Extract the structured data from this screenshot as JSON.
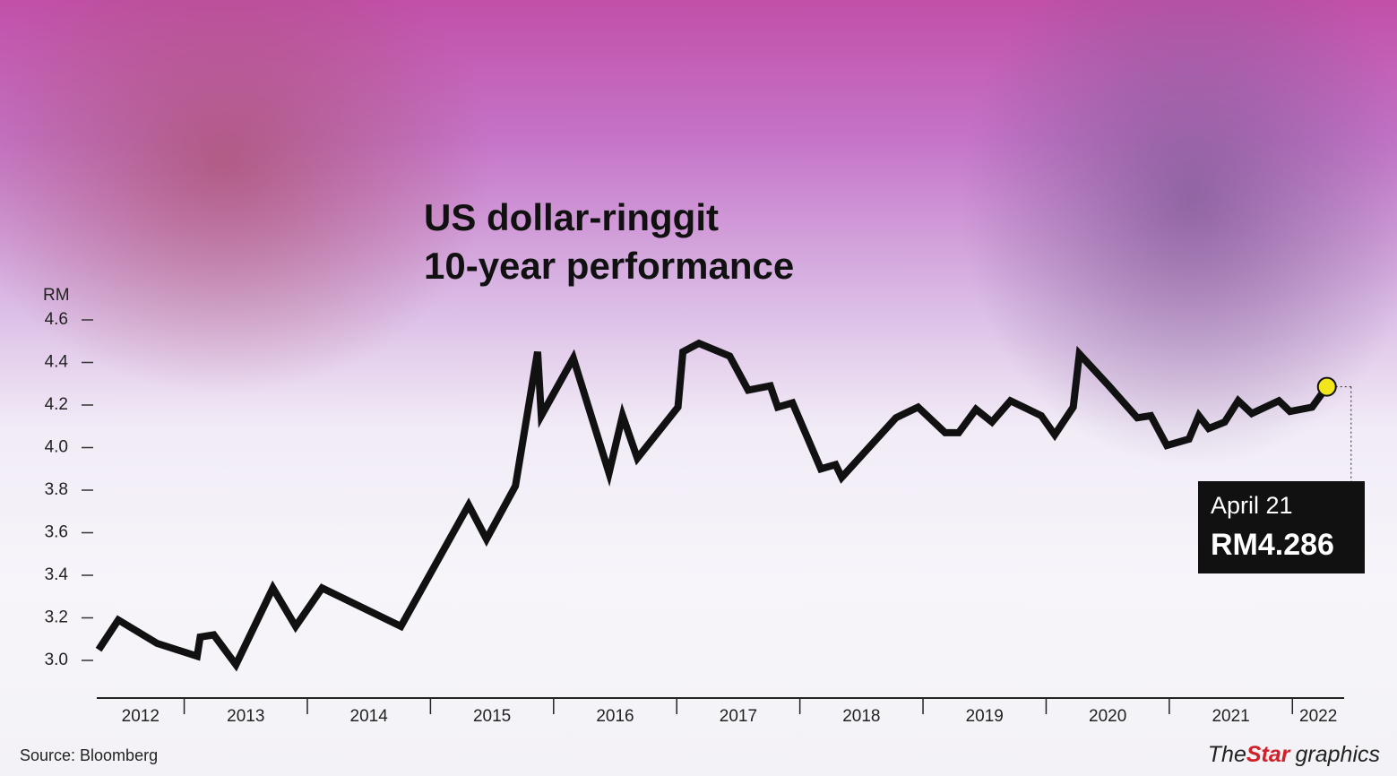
{
  "chart_data": {
    "type": "line",
    "title": "US dollar-ringgit",
    "subtitle": "10-year performance",
    "y_label": "RM",
    "ylim": [
      2.8,
      4.8
    ],
    "yticks": [
      {
        "value": 3.0,
        "label": "3.0"
      },
      3.2,
      3.4,
      3.6,
      3.8,
      {
        "value": 4.0,
        "label": "4.0"
      },
      4.2,
      4.4,
      4.6
    ],
    "xlim": [
      2012.29,
      2022.42
    ],
    "xticks": [
      2013,
      2014,
      2015,
      2016,
      2017,
      2018,
      2019,
      2020,
      2021,
      2022
    ],
    "year_labels": [
      2012,
      2013,
      2014,
      2015,
      2016,
      2017,
      2018,
      2019,
      2020,
      2021,
      2022
    ],
    "x": [
      2012.305,
      2012.465,
      2012.78,
      2013.105,
      2013.13,
      2013.24,
      2013.42,
      2013.72,
      2013.905,
      2014.12,
      2014.76,
      2015.31,
      2015.455,
      2015.69,
      2015.87,
      2015.9,
      2016.16,
      2016.45,
      2016.56,
      2016.68,
      2017.01,
      2017.05,
      2017.18,
      2017.43,
      2017.58,
      2017.76,
      2017.82,
      2017.94,
      2018.17,
      2018.29,
      2018.34,
      2018.78,
      2018.96,
      2019.18,
      2019.29,
      2019.43,
      2019.56,
      2019.71,
      2019.96,
      2020.07,
      2020.22,
      2020.27,
      2020.51,
      2020.74,
      2020.85,
      2020.98,
      2021.16,
      2021.24,
      2021.32,
      2021.45,
      2021.56,
      2021.67,
      2021.89,
      2021.98,
      2022.16,
      2022.28
    ],
    "series": [
      {
        "color": "#111111",
        "values": [
          3.05,
          3.19,
          3.08,
          3.02,
          3.11,
          3.12,
          2.98,
          3.34,
          3.16,
          3.34,
          3.16,
          3.73,
          3.57,
          3.82,
          4.45,
          4.15,
          4.42,
          3.88,
          4.15,
          3.95,
          4.19,
          4.45,
          4.49,
          4.43,
          4.27,
          4.29,
          4.19,
          4.21,
          3.9,
          3.92,
          3.86,
          4.14,
          4.19,
          4.07,
          4.07,
          4.18,
          4.12,
          4.22,
          4.15,
          4.06,
          4.19,
          4.44,
          4.29,
          4.14,
          4.15,
          4.01,
          4.04,
          4.15,
          4.09,
          4.12,
          4.22,
          4.16,
          4.22,
          4.17,
          4.19,
          4.286
        ],
        "value_labels": [
          null,
          null,
          null,
          null,
          null,
          null,
          null,
          null,
          null,
          null,
          null,
          null,
          null,
          null,
          null,
          null,
          null,
          null,
          null,
          null,
          null,
          null,
          null,
          null,
          null,
          null,
          null,
          null,
          null,
          null,
          null,
          null,
          null,
          null,
          null,
          null,
          null,
          null,
          null,
          null,
          null,
          null,
          null,
          null,
          null,
          null,
          null,
          null,
          null,
          null,
          null,
          null,
          null,
          null,
          null,
          "RM4.286"
        ]
      }
    ],
    "annotation": "April 21",
    "marker_color": "#f2e51c",
    "source": "Source: Bloomberg",
    "logo": [
      "The",
      "Star",
      "graphics"
    ]
  }
}
